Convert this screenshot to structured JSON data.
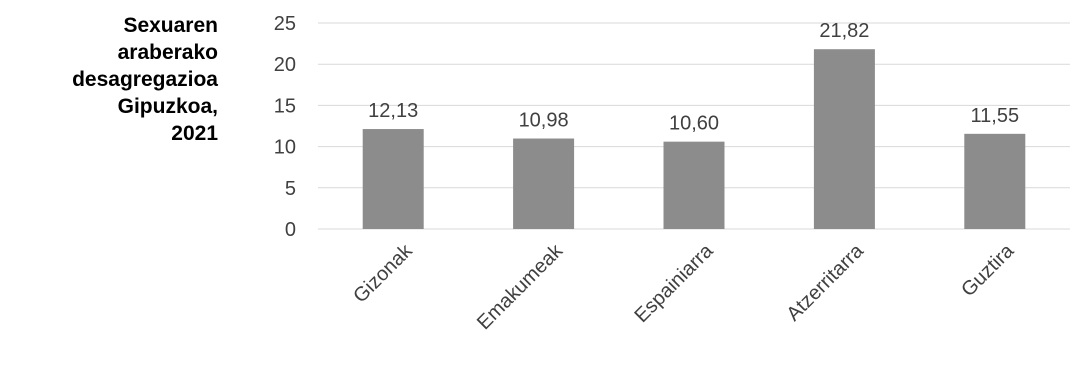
{
  "chart_data": {
    "type": "bar",
    "title_lines": [
      "Sexuaren",
      "araberako",
      "desagregazioa",
      "Gipuzkoa,",
      "2021"
    ],
    "categories": [
      "Gizonak",
      "Emakumeak",
      "Espainiarra",
      "Atzerritarra",
      "Guztira"
    ],
    "values": [
      12.13,
      10.98,
      10.6,
      21.82,
      11.55
    ],
    "value_labels": [
      "12,13",
      "10,98",
      "10,60",
      "21,82",
      "11,55"
    ],
    "ylim": [
      0,
      25
    ],
    "yticks": [
      "0",
      "5",
      "10",
      "15",
      "20",
      "25"
    ],
    "xlabel": "",
    "ylabel": "",
    "grid": true,
    "legend": "none",
    "bar_color": "#8c8c8c",
    "grid_color": "#d9d9d9",
    "text_color": "#404040"
  }
}
